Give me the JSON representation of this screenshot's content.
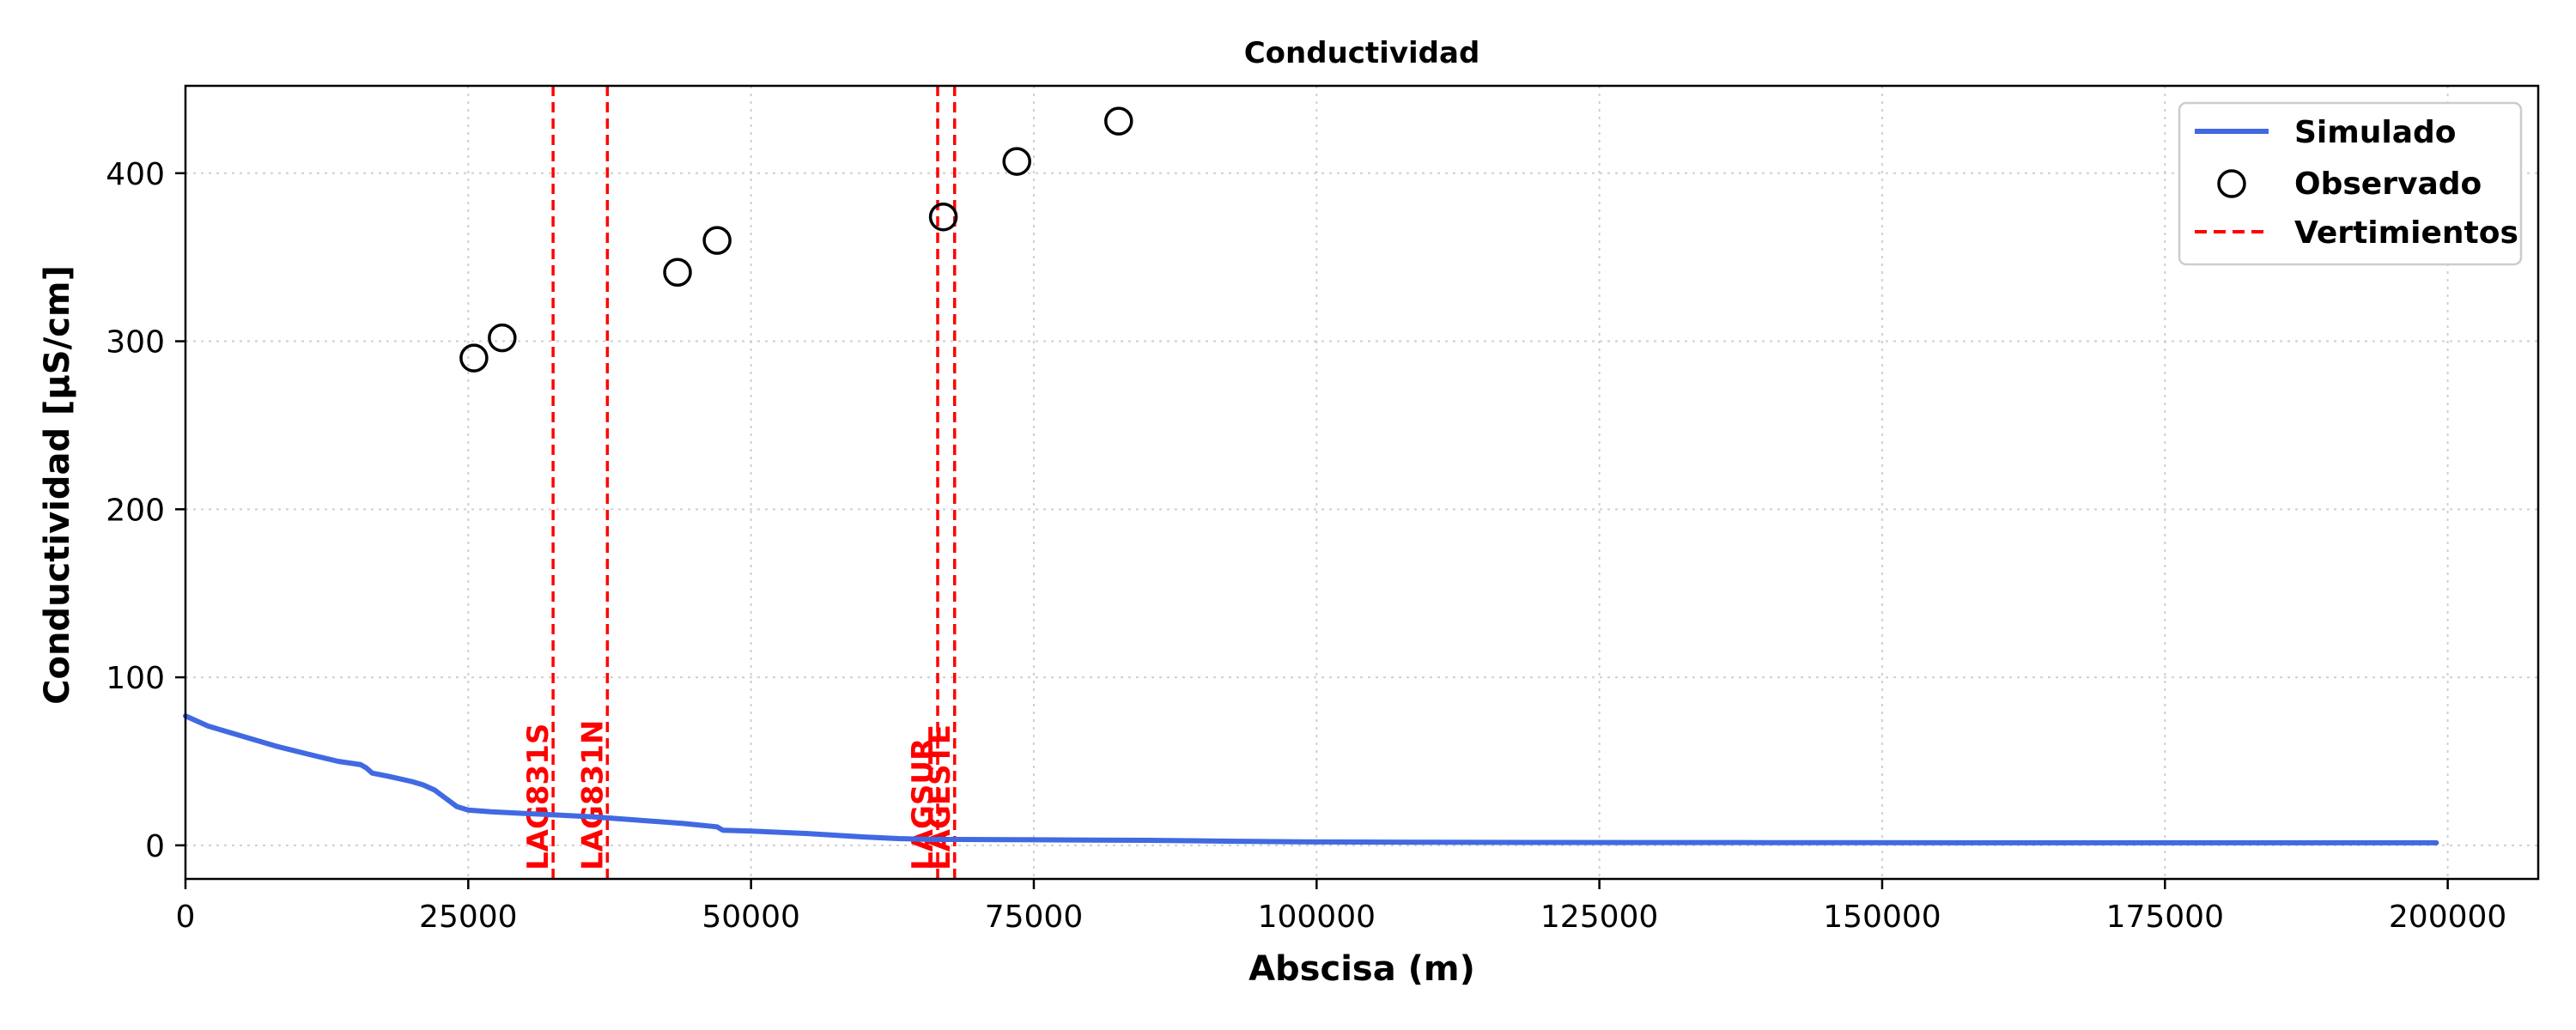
{
  "chart_data": {
    "type": "line",
    "title": "Conductividad",
    "xlabel": "Abscisa (m)",
    "ylabel": "Conductividad [µS/cm]",
    "xlim": [
      0,
      208000
    ],
    "ylim": [
      -20,
      452
    ],
    "xticks": [
      0,
      25000,
      50000,
      75000,
      100000,
      125000,
      150000,
      175000,
      200000
    ],
    "yticks": [
      0,
      100,
      200,
      300,
      400
    ],
    "grid": true,
    "legend_position": "top-right",
    "colors": {
      "simulado": "#4169e1",
      "observado": "#000000",
      "vertimientos": "#ff0000"
    },
    "series": [
      {
        "name": "Simulado",
        "style": "line",
        "x": [
          0,
          2000,
          5000,
          8000,
          11000,
          13500,
          15500,
          16000,
          16500,
          18000,
          20000,
          21000,
          22000,
          23000,
          24000,
          25000,
          27000,
          30000,
          33000,
          36000,
          40000,
          44000,
          47000,
          47500,
          50000,
          55000,
          60000,
          63000,
          66000,
          68000,
          75000,
          85000,
          92000,
          100000,
          110000,
          120000,
          140000,
          160000,
          180000,
          199000
        ],
        "y": [
          77,
          71,
          65,
          59,
          54,
          50,
          48,
          46,
          43,
          41,
          38,
          36,
          33,
          28,
          23,
          21,
          20,
          19,
          18,
          17,
          15,
          13,
          11,
          9,
          8.5,
          7,
          5,
          4,
          3.5,
          3.5,
          3.3,
          3,
          2.5,
          2,
          1.8,
          1.7,
          1.6,
          1.5,
          1.5,
          1.5
        ]
      },
      {
        "name": "Observado",
        "style": "markers",
        "x": [
          25500,
          28000,
          43500,
          47000,
          67000,
          73500,
          82500
        ],
        "y": [
          290,
          302,
          341,
          360,
          374,
          407,
          431
        ]
      }
    ],
    "vertimientos": {
      "name": "Vertimientos",
      "items": [
        {
          "label": "LAG831S",
          "x": 32500
        },
        {
          "label": "LAG831N",
          "x": 37300
        },
        {
          "label": "LAGSUR",
          "x": 66500
        },
        {
          "label": "LAGESTE",
          "x": 68000
        }
      ]
    }
  }
}
